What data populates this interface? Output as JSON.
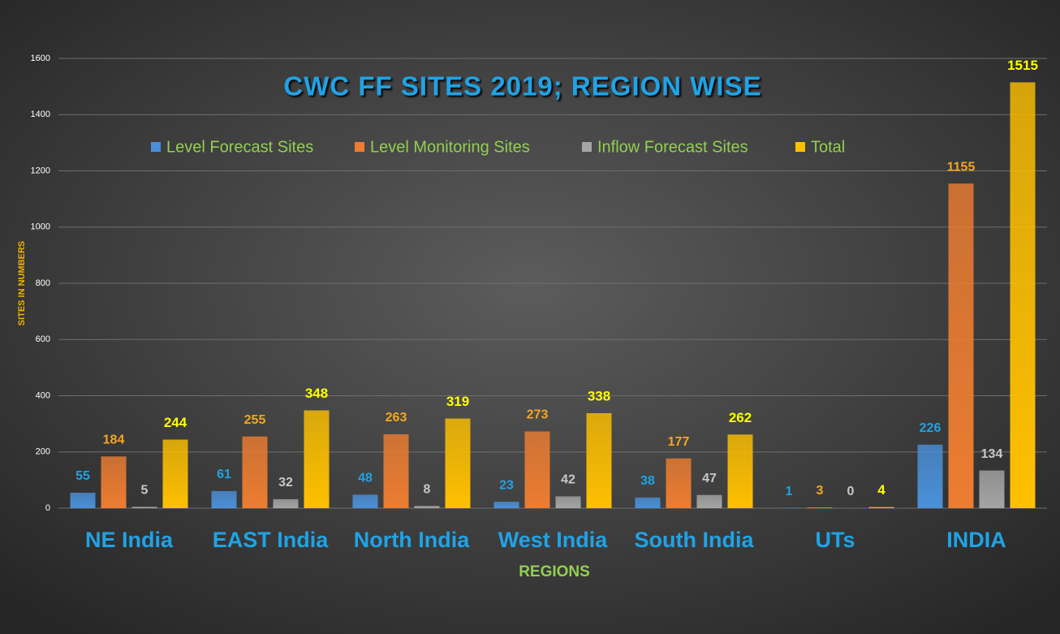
{
  "chart_data": {
    "type": "bar",
    "title": "CWC FF SITES 2019; REGION WISE",
    "x_label": "REGIONS",
    "y_label": "SITES IN NUMBERS",
    "categories": [
      "NE India",
      "EAST India",
      "North India",
      "West India",
      "South India",
      "UTs",
      "INDIA"
    ],
    "series": [
      {
        "name": "Level Forecast Sites",
        "color": "#4a90d9",
        "label_color": "#1fa3e6",
        "values": [
          55,
          61,
          48,
          23,
          38,
          1,
          226
        ]
      },
      {
        "name": "Level Monitoring Sites",
        "color": "#ed7d31",
        "label_color": "#f5a623",
        "values": [
          184,
          255,
          263,
          273,
          177,
          3,
          1155
        ]
      },
      {
        "name": "Inflow Forecast Sites",
        "color": "#a5a5a5",
        "label_color": "#c8c8c8",
        "values": [
          5,
          32,
          8,
          42,
          47,
          0,
          134
        ]
      },
      {
        "name": "Total",
        "color": "#ffc000",
        "label_color": "#ffff00",
        "values": [
          244,
          348,
          319,
          338,
          262,
          4,
          1515
        ]
      }
    ],
    "ylim": [
      0,
      1600
    ],
    "yticks": [
      0,
      200,
      400,
      600,
      800,
      1000,
      1200,
      1400,
      1600
    ],
    "grid": true
  }
}
